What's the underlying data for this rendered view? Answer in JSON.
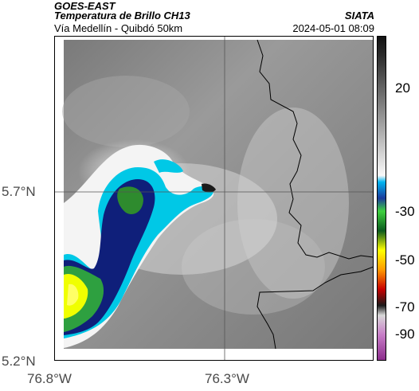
{
  "header": {
    "satellite": "GOES-EAST",
    "product": "Temperatura de Brillo CH13",
    "organization": "SIATA",
    "region": "Vía Medellín - Quibdó 50km",
    "timestamp": "2024-05-01 08:09"
  },
  "map": {
    "latitude_labels": [
      "5.7°N",
      "5.2°N"
    ],
    "longitude_labels": [
      "76.8°W",
      "76.3°W"
    ],
    "colorbar_labels": [
      "20",
      "-30",
      "-50",
      "-70",
      "-90"
    ],
    "colors": {
      "cold_cyan": "#00c8e6",
      "deep_blue": "#0f1f7a",
      "green": "#2e8b2e",
      "yellow": "#ffff00",
      "border": "#000000"
    }
  }
}
